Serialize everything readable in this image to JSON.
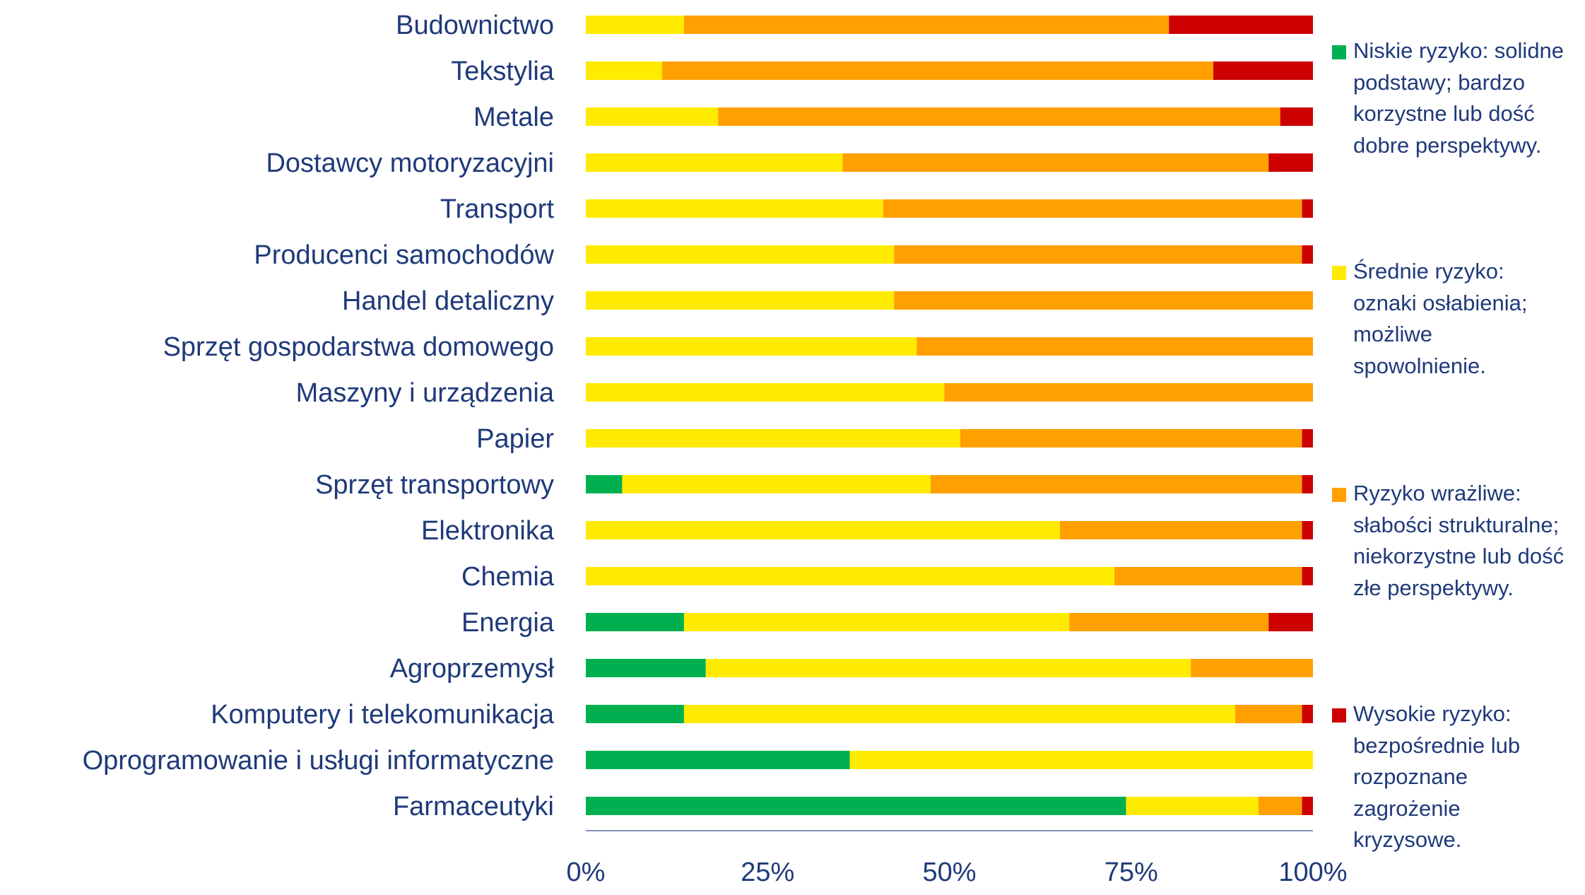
{
  "colors": {
    "low": "#00b050",
    "medium": "#ffeb00",
    "sensitive": "#ffa000",
    "high": "#cc0000",
    "text": "#1f3a7a",
    "axis": "#8093b3"
  },
  "chart_data": {
    "type": "bar",
    "orientation": "horizontal",
    "stacked": true,
    "xlim": [
      0,
      100
    ],
    "x_ticks": [
      "0%",
      "25%",
      "50%",
      "75%",
      "100%"
    ],
    "grid": false,
    "legend_position": "right",
    "categories": [
      "Budownictwo",
      "Tekstylia",
      "Metale",
      "Dostawcy motoryzacyjni",
      "Transport",
      "Producenci samochodów",
      "Handel detaliczny",
      "Sprzęt gospodarstwa domowego",
      "Maszyny i urządzenia",
      "Papier",
      "Sprzęt transportowy",
      "Elektronika",
      "Chemia",
      "Energia",
      "Agroprzemysł",
      "Komputery i telekomunikacja",
      "Oprogramowanie i usługi informatyczne",
      "Farmaceutyki"
    ],
    "series": [
      {
        "name": "Niskie ryzyko: solidne podstawy; bardzo korzystne lub dość dobre perspektywy.",
        "color": "#00b050",
        "values": [
          0,
          0,
          0,
          0,
          0,
          0,
          0,
          0,
          0,
          0,
          5,
          0,
          0,
          13.5,
          16.5,
          13.5,
          36.3,
          74.3
        ]
      },
      {
        "name": "Średnie ryzyko: oznaki osłabienia; możliwe spowolnienie.",
        "color": "#ffeb00",
        "values": [
          13.5,
          10.5,
          18.2,
          35.3,
          40.9,
          42.4,
          42.4,
          45.5,
          49.3,
          51.5,
          42.4,
          65.2,
          72.7,
          53.0,
          66.7,
          75.8,
          63.7,
          18.2
        ]
      },
      {
        "name": "Ryzyko wrażliwe: słabości strukturalne; niekorzystne lub dość złe perspektywy.",
        "color": "#ffa000",
        "values": [
          66.7,
          75.8,
          77.3,
          58.6,
          57.6,
          56.1,
          57.6,
          54.5,
          50.7,
          47.0,
          51.1,
          33.3,
          25.8,
          27.4,
          16.8,
          9.2,
          0,
          6.0
        ]
      },
      {
        "name": "Wysokie ryzyko: bezpośrednie lub rozpoznane zagrożenie kryzysowe.",
        "color": "#cc0000",
        "values": [
          19.8,
          13.7,
          4.5,
          6.1,
          1.5,
          1.5,
          0,
          0,
          0,
          1.5,
          1.5,
          1.5,
          1.5,
          6.1,
          0,
          1.5,
          0,
          1.5
        ]
      }
    ]
  },
  "legend": [
    {
      "key": "low",
      "lines": [
        "Niskie ryzyko: solidne",
        "podstawy; bardzo",
        "korzystne lub dość",
        "dobre perspektywy."
      ]
    },
    {
      "key": "medium",
      "lines": [
        "Średnie ryzyko:",
        "oznaki osłabienia;",
        "możliwe",
        "spowolnienie."
      ]
    },
    {
      "key": "sensitive",
      "lines": [
        "Ryzyko wrażliwe:",
        "słabości strukturalne;",
        "niekorzystne lub dość",
        "złe perspektywy."
      ]
    },
    {
      "key": "high",
      "lines": [
        "Wysokie ryzyko:",
        "bezpośrednie lub",
        "rozpoznane",
        "zagrożenie",
        "kryzysowe."
      ]
    }
  ]
}
